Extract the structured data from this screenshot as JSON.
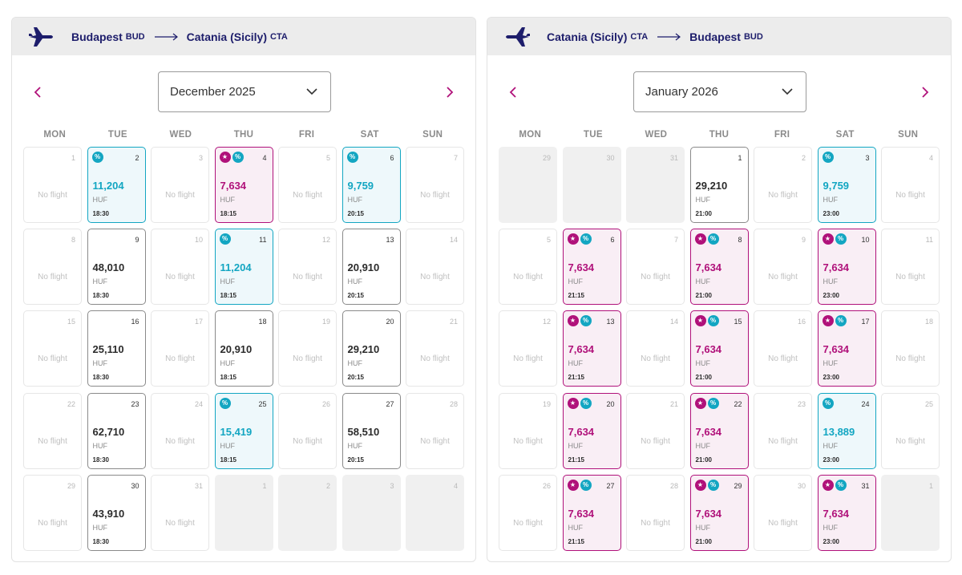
{
  "colors": {
    "teal": "#13a6c2",
    "pink": "#b0117a",
    "navy": "#1d1d6b"
  },
  "weekdays": [
    "MON",
    "TUE",
    "WED",
    "THU",
    "FRI",
    "SAT",
    "SUN"
  ],
  "no_flight": "No flight",
  "calendars": [
    {
      "from_city": "Budapest",
      "from_code": "BUD",
      "to_city": "Catania (Sicily)",
      "to_code": "CTA",
      "month": "December 2025",
      "days": [
        {
          "d": "1",
          "t": "nf"
        },
        {
          "d": "2",
          "t": "fl",
          "p": "11,204",
          "c": "HUF",
          "tm": "18:30",
          "v": "teal",
          "b": [
            "disc"
          ]
        },
        {
          "d": "3",
          "t": "nf"
        },
        {
          "d": "4",
          "t": "fl",
          "p": "7,634",
          "c": "HUF",
          "tm": "18:15",
          "v": "pink",
          "b": [
            "star",
            "disc"
          ]
        },
        {
          "d": "5",
          "t": "nf"
        },
        {
          "d": "6",
          "t": "fl",
          "p": "9,759",
          "c": "HUF",
          "tm": "20:15",
          "v": "teal",
          "b": [
            "disc"
          ]
        },
        {
          "d": "7",
          "t": "nf"
        },
        {
          "d": "8",
          "t": "nf"
        },
        {
          "d": "9",
          "t": "fl",
          "p": "48,010",
          "c": "HUF",
          "tm": "18:30",
          "v": "plain",
          "b": []
        },
        {
          "d": "10",
          "t": "nf"
        },
        {
          "d": "11",
          "t": "fl",
          "p": "11,204",
          "c": "HUF",
          "tm": "18:15",
          "v": "teal",
          "b": [
            "disc"
          ]
        },
        {
          "d": "12",
          "t": "nf"
        },
        {
          "d": "13",
          "t": "fl",
          "p": "20,910",
          "c": "HUF",
          "tm": "20:15",
          "v": "plain",
          "b": []
        },
        {
          "d": "14",
          "t": "nf"
        },
        {
          "d": "15",
          "t": "nf"
        },
        {
          "d": "16",
          "t": "fl",
          "p": "25,110",
          "c": "HUF",
          "tm": "18:30",
          "v": "plain",
          "b": []
        },
        {
          "d": "17",
          "t": "nf"
        },
        {
          "d": "18",
          "t": "fl",
          "p": "20,910",
          "c": "HUF",
          "tm": "18:15",
          "v": "plain",
          "b": []
        },
        {
          "d": "19",
          "t": "nf"
        },
        {
          "d": "20",
          "t": "fl",
          "p": "29,210",
          "c": "HUF",
          "tm": "20:15",
          "v": "plain",
          "b": []
        },
        {
          "d": "21",
          "t": "nf"
        },
        {
          "d": "22",
          "t": "nf"
        },
        {
          "d": "23",
          "t": "fl",
          "p": "62,710",
          "c": "HUF",
          "tm": "18:30",
          "v": "plain",
          "b": []
        },
        {
          "d": "24",
          "t": "nf"
        },
        {
          "d": "25",
          "t": "fl",
          "p": "15,419",
          "c": "HUF",
          "tm": "18:15",
          "v": "teal",
          "b": [
            "disc"
          ]
        },
        {
          "d": "26",
          "t": "nf"
        },
        {
          "d": "27",
          "t": "fl",
          "p": "58,510",
          "c": "HUF",
          "tm": "20:15",
          "v": "plain",
          "b": []
        },
        {
          "d": "28",
          "t": "nf"
        },
        {
          "d": "29",
          "t": "nf"
        },
        {
          "d": "30",
          "t": "fl",
          "p": "43,910",
          "c": "HUF",
          "tm": "18:30",
          "v": "plain",
          "b": []
        },
        {
          "d": "31",
          "t": "nf"
        },
        {
          "d": "1",
          "t": "out"
        },
        {
          "d": "2",
          "t": "out"
        },
        {
          "d": "3",
          "t": "out"
        },
        {
          "d": "4",
          "t": "out"
        }
      ]
    },
    {
      "from_city": "Catania (Sicily)",
      "from_code": "CTA",
      "to_city": "Budapest",
      "to_code": "BUD",
      "month": "January 2026",
      "days": [
        {
          "d": "29",
          "t": "out"
        },
        {
          "d": "30",
          "t": "out"
        },
        {
          "d": "31",
          "t": "out"
        },
        {
          "d": "1",
          "t": "fl",
          "p": "29,210",
          "c": "HUF",
          "tm": "21:00",
          "v": "plain",
          "b": []
        },
        {
          "d": "2",
          "t": "nf"
        },
        {
          "d": "3",
          "t": "fl",
          "p": "9,759",
          "c": "HUF",
          "tm": "23:00",
          "v": "teal",
          "b": [
            "disc"
          ]
        },
        {
          "d": "4",
          "t": "nf"
        },
        {
          "d": "5",
          "t": "nf"
        },
        {
          "d": "6",
          "t": "fl",
          "p": "7,634",
          "c": "HUF",
          "tm": "21:15",
          "v": "pink",
          "b": [
            "star",
            "disc"
          ]
        },
        {
          "d": "7",
          "t": "nf"
        },
        {
          "d": "8",
          "t": "fl",
          "p": "7,634",
          "c": "HUF",
          "tm": "21:00",
          "v": "pink",
          "b": [
            "star",
            "disc"
          ]
        },
        {
          "d": "9",
          "t": "nf"
        },
        {
          "d": "10",
          "t": "fl",
          "p": "7,634",
          "c": "HUF",
          "tm": "23:00",
          "v": "pink",
          "b": [
            "star",
            "disc"
          ]
        },
        {
          "d": "11",
          "t": "nf"
        },
        {
          "d": "12",
          "t": "nf"
        },
        {
          "d": "13",
          "t": "fl",
          "p": "7,634",
          "c": "HUF",
          "tm": "21:15",
          "v": "pink",
          "b": [
            "star",
            "disc"
          ]
        },
        {
          "d": "14",
          "t": "nf"
        },
        {
          "d": "15",
          "t": "fl",
          "p": "7,634",
          "c": "HUF",
          "tm": "21:00",
          "v": "pink",
          "b": [
            "star",
            "disc"
          ]
        },
        {
          "d": "16",
          "t": "nf"
        },
        {
          "d": "17",
          "t": "fl",
          "p": "7,634",
          "c": "HUF",
          "tm": "23:00",
          "v": "pink",
          "b": [
            "star",
            "disc"
          ]
        },
        {
          "d": "18",
          "t": "nf"
        },
        {
          "d": "19",
          "t": "nf"
        },
        {
          "d": "20",
          "t": "fl",
          "p": "7,634",
          "c": "HUF",
          "tm": "21:15",
          "v": "pink",
          "b": [
            "star",
            "disc"
          ]
        },
        {
          "d": "21",
          "t": "nf"
        },
        {
          "d": "22",
          "t": "fl",
          "p": "7,634",
          "c": "HUF",
          "tm": "21:00",
          "v": "pink",
          "b": [
            "star",
            "disc"
          ]
        },
        {
          "d": "23",
          "t": "nf"
        },
        {
          "d": "24",
          "t": "fl",
          "p": "13,889",
          "c": "HUF",
          "tm": "23:00",
          "v": "teal",
          "b": [
            "disc"
          ]
        },
        {
          "d": "25",
          "t": "nf"
        },
        {
          "d": "26",
          "t": "nf"
        },
        {
          "d": "27",
          "t": "fl",
          "p": "7,634",
          "c": "HUF",
          "tm": "21:15",
          "v": "pink",
          "b": [
            "star",
            "disc"
          ]
        },
        {
          "d": "28",
          "t": "nf"
        },
        {
          "d": "29",
          "t": "fl",
          "p": "7,634",
          "c": "HUF",
          "tm": "21:00",
          "v": "pink",
          "b": [
            "star",
            "disc"
          ]
        },
        {
          "d": "30",
          "t": "nf"
        },
        {
          "d": "31",
          "t": "fl",
          "p": "7,634",
          "c": "HUF",
          "tm": "23:00",
          "v": "pink",
          "b": [
            "star",
            "disc"
          ]
        },
        {
          "d": "1",
          "t": "out"
        }
      ]
    }
  ]
}
